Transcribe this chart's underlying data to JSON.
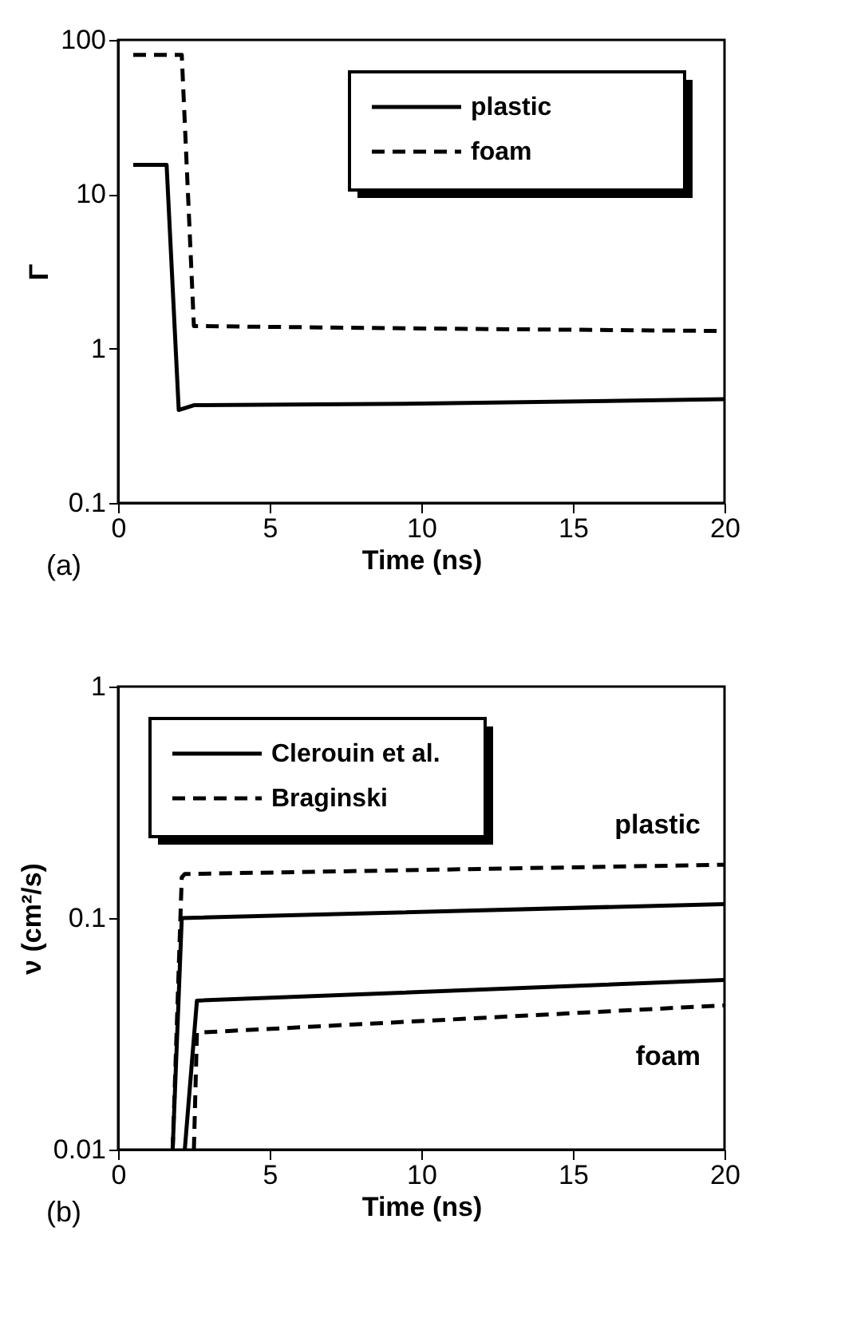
{
  "chart_data": [
    {
      "type": "line",
      "xlabel": "Time (ns)",
      "ylabel": "Γ",
      "xlim": [
        0,
        20
      ],
      "ylim": [
        0.1,
        100
      ],
      "xticks": [
        0,
        5,
        10,
        15,
        20
      ],
      "yticks": [
        0.1,
        1,
        10,
        100
      ],
      "log": "y",
      "grid": false,
      "legend": "top right",
      "annotations": [
        "(a)"
      ],
      "series": [
        {
          "name": "plastic",
          "color": "#000000",
          "line_style": "solid",
          "x": [
            0.5,
            1.6,
            2.0,
            2.5,
            10,
            20
          ],
          "values": [
            15.5,
            15.5,
            0.4,
            0.43,
            0.44,
            0.47
          ]
        },
        {
          "name": "foam",
          "color": "#000000",
          "line_style": "dashed",
          "x": [
            0.5,
            2.1,
            2.5,
            10,
            20
          ],
          "values": [
            80,
            80,
            1.4,
            1.35,
            1.3
          ]
        }
      ]
    },
    {
      "type": "line",
      "xlabel": "Time (ns)",
      "ylabel": "ν (cm²/s)",
      "xlim": [
        0,
        20
      ],
      "ylim": [
        0.01,
        1
      ],
      "xticks": [
        0,
        5,
        10,
        15,
        20
      ],
      "yticks": [
        0.01,
        0.1,
        1
      ],
      "log": "y",
      "grid": false,
      "legend": "top left",
      "annotations": [
        "(b)",
        "plastic",
        "foam"
      ],
      "series": [
        {
          "name": "Clerouin et al.",
          "color": "#000000",
          "line_style": "solid",
          "x": [
            1.8,
            2.1,
            20
          ],
          "values": [
            0.01,
            0.1,
            0.115
          ]
        },
        {
          "name": "Braginski",
          "color": "#000000",
          "line_style": "dashed",
          "x": [
            1.8,
            2.1,
            2.2,
            20
          ],
          "values": [
            0.01,
            0.15,
            0.155,
            0.17
          ]
        },
        {
          "color": "#000000",
          "line_style": "solid",
          "x": [
            2.2,
            2.6,
            20
          ],
          "values": [
            0.01,
            0.044,
            0.054
          ]
        },
        {
          "color": "#000000",
          "line_style": "dashed",
          "x": [
            2.5,
            2.6,
            20
          ],
          "values": [
            0.01,
            0.032,
            0.042
          ]
        }
      ]
    }
  ]
}
